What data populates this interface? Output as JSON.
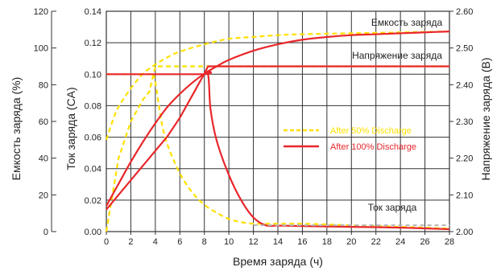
{
  "chart_data": {
    "type": "line",
    "xlabel": "Время заряда (ч)",
    "y_left_outer_label": "Емкость заряда (%)",
    "y_left_inner_label": "Ток заряда (CA)",
    "y_right_label": "Напряжение заряда (В)",
    "xlim": [
      0,
      28
    ],
    "x_ticks": [
      "0",
      "2",
      "4",
      "6",
      "8",
      "10",
      "12",
      "14",
      "16",
      "18",
      "20",
      "22",
      "24",
      "26",
      "28"
    ],
    "ylim_current": [
      0,
      0.14
    ],
    "current_ticks": [
      "0.00",
      "0.02",
      "0.04",
      "0.06",
      "0.08",
      "0.10",
      "0.12",
      "0.14"
    ],
    "ylim_capacity": [
      0,
      120
    ],
    "capacity_ticks": [
      "0",
      "20",
      "40",
      "60",
      "80",
      "100",
      "120"
    ],
    "ylim_voltage": [
      2.0,
      2.6
    ],
    "voltage_ticks": [
      "2.00",
      "2.10",
      "2.20",
      "2.30",
      "2.40",
      "2.50",
      "2.60"
    ],
    "grid": true,
    "legend_position": "center-right",
    "annotations": {
      "capacity": "Емкость заряда",
      "voltage": "Напряжение  заряда",
      "current": "Ток заряда"
    },
    "series": [
      {
        "name": "After 50% Discharge",
        "color": "#ffe000",
        "style": "dashed",
        "curves": {
          "capacity_pct": {
            "x": [
              0,
              0.5,
              1,
              2,
              3,
              4,
              5,
              6,
              8,
              10,
              12,
              14,
              16,
              20,
              24,
              28
            ],
            "y": [
              50,
              60,
              68,
              78,
              86,
              91,
              95,
              98,
              102,
              105,
              106,
              107,
              107.5,
              108,
              108.5,
              109
            ]
          },
          "voltage_v": {
            "x": [
              0,
              0.5,
              1,
              2,
              3,
              3.5,
              4,
              6,
              8,
              10,
              14,
              20,
              28
            ],
            "y": [
              2.0,
              2.1,
              2.2,
              2.3,
              2.36,
              2.38,
              2.45,
              2.45,
              2.45,
              2.45,
              2.45,
              2.45,
              2.45
            ]
          },
          "current_ca": {
            "x": [
              0,
              3.5,
              3.8,
              4,
              4.5,
              5,
              6,
              7,
              8,
              9,
              10,
              11,
              12,
              13,
              14,
              16,
              20,
              24,
              28
            ],
            "y": [
              0.1,
              0.1,
              0.1,
              0.095,
              0.07,
              0.055,
              0.037,
              0.025,
              0.017,
              0.012,
              0.008,
              0.006,
              0.005,
              0.005,
              0.005,
              0.005,
              0.004,
              0.003,
              0.002
            ]
          }
        }
      },
      {
        "name": "After 100% Discharge",
        "color": "#e8272b",
        "style": "solid",
        "curves": {
          "capacity_pct": {
            "x": [
              0,
              1,
              2,
              3,
              4,
              5,
              6,
              7,
              8,
              9,
              10,
              12,
              14,
              16,
              18,
              20,
              22,
              24,
              26,
              28
            ],
            "y": [
              14,
              26,
              38,
              49,
              59,
              68,
              75,
              81,
              86,
              90,
              93.5,
              98.5,
              102,
              104.5,
              106,
              107,
              107.5,
              108,
              108.5,
              109
            ]
          },
          "voltage_v": {
            "x": [
              0,
              1,
              2,
              3,
              4,
              5,
              6,
              7,
              7.5,
              8,
              8.3,
              10,
              14,
              20,
              28
            ],
            "y": [
              2.06,
              2.1,
              2.14,
              2.18,
              2.22,
              2.26,
              2.31,
              2.37,
              2.4,
              2.43,
              2.45,
              2.45,
              2.45,
              2.45,
              2.45
            ]
          },
          "current_ca": {
            "x": [
              0,
              7.8,
              8.3,
              8.5,
              9,
              10,
              11,
              12,
              13,
              14,
              16,
              20,
              24,
              28
            ],
            "y": [
              0.1,
              0.1,
              0.1,
              0.078,
              0.058,
              0.036,
              0.02,
              0.009,
              0.004,
              0.0038,
              0.0035,
              0.003,
              0.0025,
              0.0015
            ]
          }
        }
      }
    ]
  }
}
